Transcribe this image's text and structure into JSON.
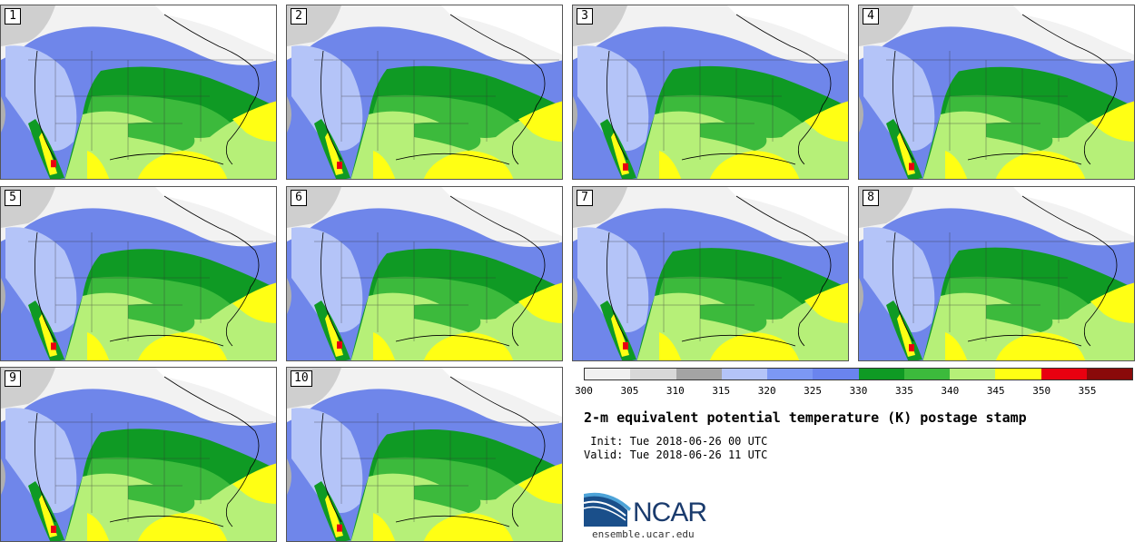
{
  "stamps": [
    {
      "label": "1"
    },
    {
      "label": "2"
    },
    {
      "label": "3"
    },
    {
      "label": "4"
    },
    {
      "label": "5"
    },
    {
      "label": "6"
    },
    {
      "label": "7"
    },
    {
      "label": "8"
    },
    {
      "label": "9"
    },
    {
      "label": "10"
    }
  ],
  "colorbar": {
    "colors": [
      "#f0f0f0",
      "#d8d8d8",
      "#a4a4a4",
      "#b4c4f8",
      "#7c98f4",
      "#6a84ee",
      "#0f9a24",
      "#3cba3c",
      "#b6f078",
      "#ffff14",
      "#e80010",
      "#8a0a0a"
    ],
    "labels": [
      "300",
      "305",
      "310",
      "315",
      "320",
      "325",
      "330",
      "335",
      "340",
      "345",
      "350",
      "355"
    ]
  },
  "title": "2-m equivalent potential temperature (K) postage stamp",
  "init": " Init: Tue 2018-06-26 00 UTC",
  "valid": "Valid: Tue 2018-06-26 11 UTC",
  "logo": {
    "word": "NCAR",
    "url": "ensemble.ucar.edu"
  }
}
